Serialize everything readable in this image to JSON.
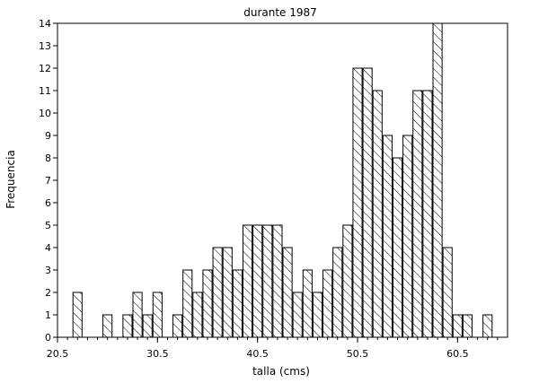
{
  "chart_data": {
    "type": "bar",
    "title": "durante 1987",
    "xlabel": "talla (cms)",
    "ylabel": "Frequencia",
    "xlim": [
      20.5,
      65.5
    ],
    "ylim": [
      0,
      14
    ],
    "xticks": [
      "20.5",
      "30.5",
      "40.5",
      "50.5",
      "60.5"
    ],
    "yticks": [
      "0",
      "1",
      "2",
      "3",
      "4",
      "5",
      "6",
      "7",
      "8",
      "9",
      "10",
      "11",
      "12",
      "13",
      "14"
    ],
    "bin_width": 1,
    "grid": false,
    "bars": [
      {
        "x": 22.5,
        "value": 2
      },
      {
        "x": 25.5,
        "value": 1
      },
      {
        "x": 27.5,
        "value": 1
      },
      {
        "x": 28.5,
        "value": 2
      },
      {
        "x": 29.5,
        "value": 1
      },
      {
        "x": 30.5,
        "value": 2
      },
      {
        "x": 32.5,
        "value": 1
      },
      {
        "x": 33.5,
        "value": 3
      },
      {
        "x": 34.5,
        "value": 2
      },
      {
        "x": 35.5,
        "value": 3
      },
      {
        "x": 36.5,
        "value": 4
      },
      {
        "x": 37.5,
        "value": 4
      },
      {
        "x": 38.5,
        "value": 3
      },
      {
        "x": 39.5,
        "value": 5
      },
      {
        "x": 40.5,
        "value": 5
      },
      {
        "x": 41.5,
        "value": 5
      },
      {
        "x": 42.5,
        "value": 5
      },
      {
        "x": 43.5,
        "value": 4
      },
      {
        "x": 44.5,
        "value": 2
      },
      {
        "x": 45.5,
        "value": 3
      },
      {
        "x": 46.5,
        "value": 2
      },
      {
        "x": 47.5,
        "value": 3
      },
      {
        "x": 48.5,
        "value": 4
      },
      {
        "x": 49.5,
        "value": 5
      },
      {
        "x": 50.5,
        "value": 12
      },
      {
        "x": 51.5,
        "value": 12
      },
      {
        "x": 52.5,
        "value": 11
      },
      {
        "x": 53.5,
        "value": 9
      },
      {
        "x": 54.5,
        "value": 8
      },
      {
        "x": 55.5,
        "value": 9
      },
      {
        "x": 56.5,
        "value": 11
      },
      {
        "x": 57.5,
        "value": 11
      },
      {
        "x": 58.5,
        "value": 14
      },
      {
        "x": 59.5,
        "value": 4
      },
      {
        "x": 60.5,
        "value": 1
      },
      {
        "x": 61.5,
        "value": 1
      },
      {
        "x": 63.5,
        "value": 1
      }
    ]
  }
}
